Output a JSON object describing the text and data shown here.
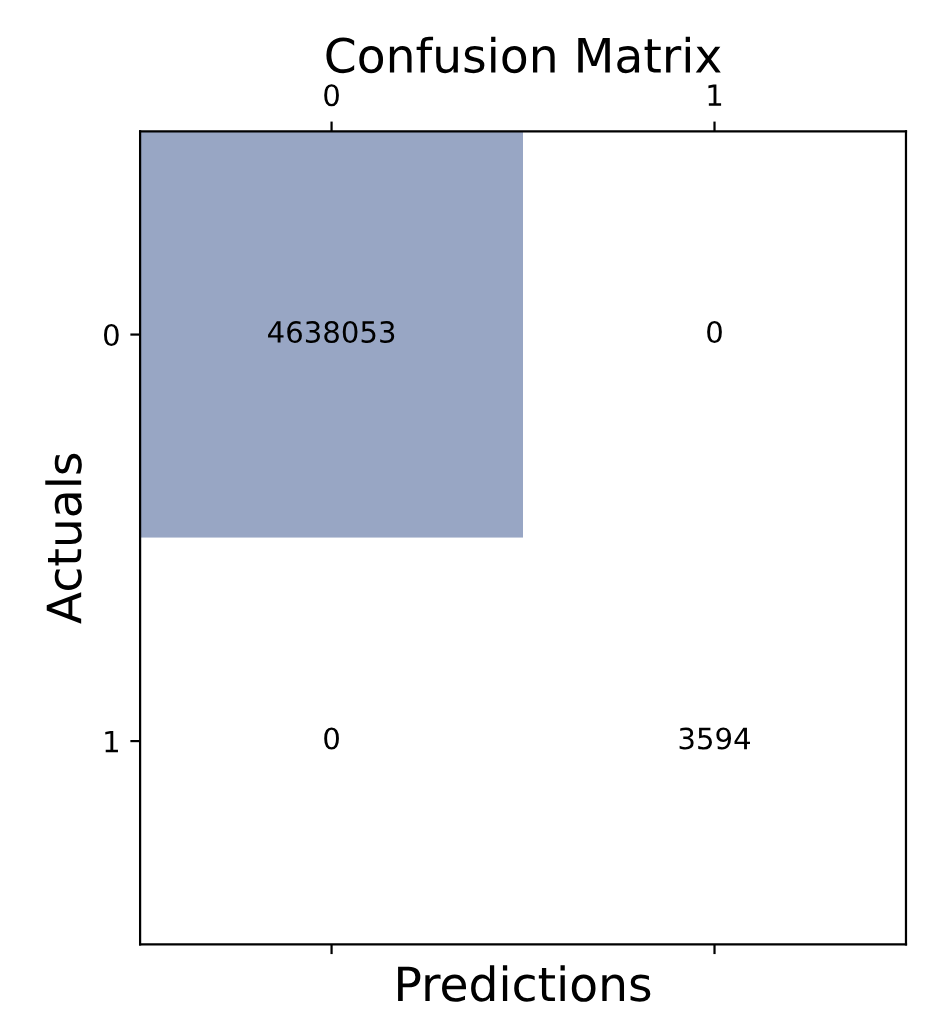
{
  "chart_data": {
    "type": "heatmap",
    "title": "Confusion Matrix",
    "xlabel": "Predictions",
    "ylabel": "Actuals",
    "categories": [
      "0",
      "1"
    ],
    "y_categories": [
      "0",
      "1"
    ],
    "cells": [
      [
        4638053,
        0
      ],
      [
        0,
        3594
      ]
    ],
    "color": "#98a6c4",
    "data_labels": true,
    "grid": false
  }
}
